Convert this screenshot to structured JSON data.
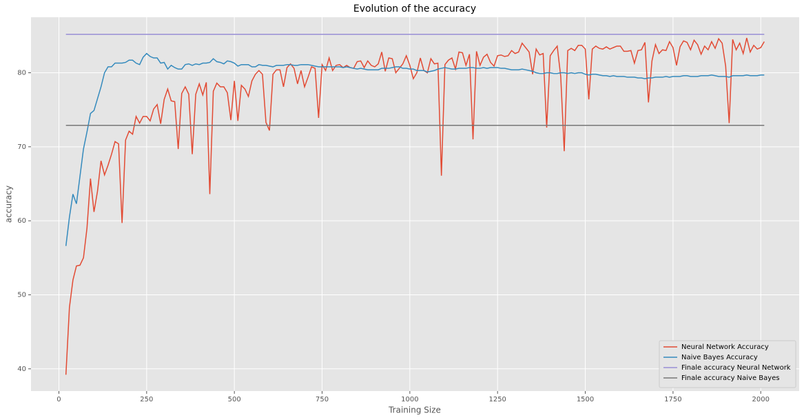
{
  "chart_data": {
    "type": "line",
    "title": "Evolution of the accuracy",
    "x_label": "Training Size",
    "y_label": "accuracy",
    "x": [
      20,
      30,
      40,
      50,
      60,
      70,
      80,
      90,
      100,
      110,
      120,
      130,
      140,
      150,
      160,
      170,
      180,
      190,
      200,
      210,
      220,
      230,
      240,
      250,
      260,
      270,
      280,
      290,
      300,
      310,
      320,
      330,
      340,
      350,
      360,
      370,
      380,
      390,
      400,
      410,
      420,
      430,
      440,
      450,
      460,
      470,
      480,
      490,
      500,
      510,
      520,
      530,
      540,
      550,
      560,
      570,
      580,
      590,
      600,
      610,
      620,
      630,
      640,
      650,
      660,
      670,
      680,
      690,
      700,
      710,
      720,
      730,
      740,
      750,
      760,
      770,
      780,
      790,
      800,
      810,
      820,
      830,
      840,
      850,
      860,
      870,
      880,
      890,
      900,
      910,
      920,
      930,
      940,
      950,
      960,
      970,
      980,
      990,
      1000,
      1010,
      1020,
      1030,
      1040,
      1050,
      1060,
      1070,
      1080,
      1090,
      1100,
      1110,
      1120,
      1130,
      1140,
      1150,
      1160,
      1170,
      1180,
      1190,
      1200,
      1210,
      1220,
      1230,
      1240,
      1250,
      1260,
      1270,
      1280,
      1290,
      1300,
      1310,
      1320,
      1330,
      1340,
      1350,
      1360,
      1370,
      1380,
      1390,
      1400,
      1410,
      1420,
      1430,
      1440,
      1450,
      1460,
      1470,
      1480,
      1490,
      1500,
      1510,
      1520,
      1530,
      1540,
      1550,
      1560,
      1570,
      1580,
      1590,
      1600,
      1610,
      1620,
      1630,
      1640,
      1650,
      1660,
      1670,
      1680,
      1690,
      1700,
      1710,
      1720,
      1730,
      1740,
      1750,
      1760,
      1770,
      1780,
      1790,
      1800,
      1810,
      1820,
      1830,
      1840,
      1850,
      1860,
      1870,
      1880,
      1890,
      1900,
      1910,
      1920,
      1930,
      1940,
      1950,
      1960,
      1970,
      1980,
      1990,
      2000,
      2010
    ],
    "series": [
      {
        "name": "Neural Network Accuracy",
        "color": "#E24A33",
        "values": [
          39.2,
          48.3,
          52,
          53.9,
          54,
          55,
          59,
          65.7,
          61.2,
          64,
          68.1,
          66.2,
          67.5,
          69,
          70.7,
          70.4,
          59.7,
          70.9,
          72.1,
          71.7,
          74.1,
          73.2,
          74.1,
          74.1,
          73.5,
          75.1,
          75.7,
          73.1,
          76.4,
          77.8,
          76.2,
          76.1,
          69.7,
          77.2,
          78.1,
          77.1,
          69,
          77.1,
          78.5,
          77,
          78.7,
          63.6,
          77.5,
          78.6,
          78.1,
          78.1,
          77.3,
          73.6,
          78.9,
          73.5,
          78.3,
          77.8,
          76.8,
          78.9,
          79.8,
          80.3,
          79.8,
          73.3,
          72.2,
          79.8,
          80.4,
          80.4,
          78.1,
          80.7,
          81.2,
          80.6,
          78.5,
          80.3,
          78.1,
          79.4,
          80.8,
          80.6,
          73.9,
          81.1,
          80.3,
          82,
          80.3,
          81,
          81.1,
          80.7,
          81,
          80.7,
          80.6,
          81.5,
          81.6,
          80.7,
          81.6,
          81,
          80.8,
          81.2,
          82.8,
          80.2,
          82,
          81.9,
          80,
          80.6,
          81.2,
          82.3,
          81,
          79.2,
          80,
          82,
          80.3,
          80,
          81.9,
          81.2,
          81.3,
          66.1,
          81.1,
          81.7,
          82,
          80.5,
          82.8,
          82.7,
          81,
          82.5,
          71,
          82.9,
          81,
          82.1,
          82.5,
          81.4,
          80.9,
          82.3,
          82.4,
          82.2,
          82.3,
          83,
          82.6,
          82.8,
          84,
          83.4,
          82.8,
          79.8,
          83.2,
          82.4,
          82.6,
          72.6,
          82.3,
          83,
          83.6,
          79.5,
          69.4,
          83,
          83.3,
          83,
          83.7,
          83.7,
          83.2,
          76.4,
          83.2,
          83.6,
          83.3,
          83.2,
          83.5,
          83.2,
          83.4,
          83.6,
          83.6,
          82.9,
          82.9,
          83,
          81.3,
          83,
          83.1,
          84.1,
          76,
          81.6,
          83.8,
          82.6,
          83.1,
          83,
          84.2,
          83.4,
          81,
          83.5,
          84.3,
          84.1,
          83.1,
          84.4,
          83.8,
          82.5,
          83.6,
          83.1,
          84.2,
          83.3,
          84.6,
          84,
          80.9,
          73.2,
          84.5,
          83.1,
          84,
          82.6,
          84.7,
          82.8,
          83.7,
          83.2,
          83.4,
          84.2
        ]
      },
      {
        "name": "Naive Bayes Accuracy",
        "color": "#348ABD",
        "values": [
          56.6,
          60.5,
          63.6,
          62.3,
          66,
          69.7,
          72,
          74.5,
          74.9,
          76.5,
          78.1,
          80,
          80.8,
          80.8,
          81.3,
          81.3,
          81.3,
          81.4,
          81.7,
          81.7,
          81.3,
          81.1,
          82.1,
          82.6,
          82.2,
          82,
          82,
          81.3,
          81.4,
          80.5,
          81,
          80.7,
          80.5,
          80.5,
          81.1,
          81.2,
          81,
          81.2,
          81.1,
          81.3,
          81.3,
          81.4,
          81.9,
          81.5,
          81.4,
          81.2,
          81.6,
          81.5,
          81.3,
          80.9,
          81.1,
          81.1,
          81.1,
          80.8,
          80.8,
          81.1,
          81,
          81,
          80.9,
          80.8,
          81,
          81,
          81,
          81.1,
          81.1,
          81,
          81,
          81.1,
          81.1,
          81.1,
          81,
          80.9,
          80.8,
          80.8,
          80.8,
          80.8,
          80.8,
          80.8,
          80.8,
          80.7,
          80.8,
          80.7,
          80.6,
          80.5,
          80.6,
          80.5,
          80.4,
          80.4,
          80.4,
          80.4,
          80.6,
          80.6,
          80.6,
          80.7,
          80.8,
          80.8,
          80.6,
          80.6,
          80.5,
          80.5,
          80.3,
          80.3,
          80.3,
          80.1,
          80.2,
          80.3,
          80.5,
          80.6,
          80.7,
          80.6,
          80.5,
          80.5,
          80.6,
          80.6,
          80.6,
          80.7,
          80.7,
          80.6,
          80.6,
          80.7,
          80.6,
          80.7,
          80.7,
          80.7,
          80.6,
          80.6,
          80.5,
          80.4,
          80.4,
          80.4,
          80.5,
          80.4,
          80.3,
          80.2,
          80,
          79.9,
          79.9,
          80,
          80,
          79.9,
          79.9,
          80,
          80,
          79.9,
          80,
          79.9,
          80,
          80,
          79.8,
          79.7,
          79.8,
          79.8,
          79.7,
          79.6,
          79.6,
          79.5,
          79.6,
          79.5,
          79.5,
          79.5,
          79.4,
          79.4,
          79.4,
          79.3,
          79.3,
          79.2,
          79.3,
          79.3,
          79.4,
          79.4,
          79.4,
          79.5,
          79.4,
          79.5,
          79.5,
          79.5,
          79.6,
          79.6,
          79.5,
          79.5,
          79.5,
          79.6,
          79.6,
          79.6,
          79.7,
          79.6,
          79.5,
          79.5,
          79.5,
          79.4,
          79.6,
          79.6,
          79.6,
          79.6,
          79.7,
          79.6,
          79.6,
          79.6,
          79.7,
          79.7
        ]
      },
      {
        "name": "Finale accuracy Neural Network",
        "color": "#988ED5",
        "x": [
          20,
          2010
        ],
        "values": [
          85.2,
          85.2
        ]
      },
      {
        "name": "Finale accuracy Naive Bayes",
        "color": "#777777",
        "x": [
          20,
          2010
        ],
        "values": [
          72.9,
          72.9
        ]
      }
    ],
    "xlim": [
      -79.5,
      2109.5
    ],
    "ylim": [
      37,
      87.5
    ],
    "xticks": [
      0,
      250,
      500,
      750,
      1000,
      1250,
      1500,
      1750,
      2000
    ],
    "yticks": [
      40,
      50,
      60,
      70,
      80
    ],
    "grid": true,
    "legend": "lower right"
  }
}
